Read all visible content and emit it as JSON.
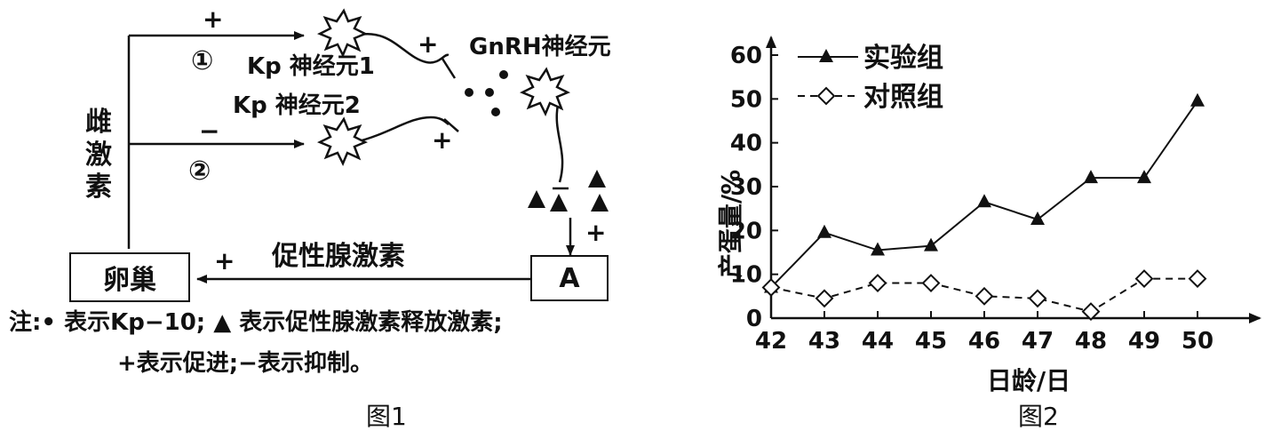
{
  "figure1": {
    "caption": "图1",
    "estrogen_label": "雌激素",
    "ovary_label": "卵巢",
    "a_label": "A",
    "kp1_label": "Kp 神经元1",
    "kp2_label": "Kp 神经元2",
    "gnrh_label": "GnRH神经元",
    "fsh_label": "促性腺激素",
    "path1_symbol": "①",
    "path2_symbol": "②",
    "plus": "+",
    "minus": "−",
    "note_line1": "注:• 表示Kp−10; ▲ 表示促性腺激素释放激素;",
    "note_line2": "+表示促进;−表示抑制。"
  },
  "figure2": {
    "caption": "图2",
    "chart_data": {
      "type": "line",
      "xlabel": "日龄/日",
      "ylabel": "产蛋量/%",
      "x": [
        42,
        43,
        44,
        45,
        46,
        47,
        48,
        49,
        50
      ],
      "ylim": [
        0,
        60
      ],
      "yticks": [
        0,
        10,
        20,
        30,
        40,
        50,
        60
      ],
      "legend_position": "top-left",
      "grid": false,
      "series": [
        {
          "name": "实验组",
          "marker": "filled-triangle",
          "line": "solid",
          "values": [
            7,
            19.5,
            15.5,
            16.5,
            26.5,
            22.5,
            32,
            32,
            49.5
          ]
        },
        {
          "name": "对照组",
          "marker": "open-diamond",
          "line": "dashed",
          "values": [
            7,
            4.5,
            8,
            8,
            5,
            4.5,
            1.5,
            9,
            9
          ]
        }
      ]
    }
  }
}
